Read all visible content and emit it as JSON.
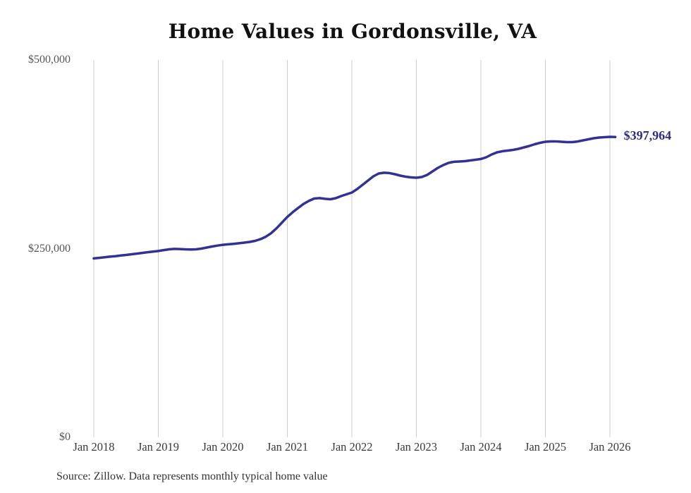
{
  "chart_data": {
    "type": "line",
    "title": "Home Values in Gordonsville, VA",
    "source": "Source: Zillow. Data represents monthly typical home value",
    "end_label": "$397,964",
    "latest_value": 397964,
    "ylim": [
      0,
      500000
    ],
    "y_tick_labels": [
      "$500,000",
      "$250,000",
      "$0"
    ],
    "y_tick_values": [
      500000,
      250000,
      0
    ],
    "x_tick_labels": [
      "Jan 2018",
      "Jan 2019",
      "Jan 2020",
      "Jan 2021",
      "Jan 2022",
      "Jan 2023",
      "Jan 2024",
      "Jan 2025",
      "Jan 2026"
    ],
    "grid": "vertical-only",
    "legend": "none",
    "line_color": "#343194",
    "grid_color": "#cccccc",
    "series": [
      {
        "name": "Monthly typical home value",
        "start": "2018-01",
        "frequency": "monthly",
        "values": [
          237000,
          237800,
          238500,
          239300,
          240000,
          240800,
          241600,
          242500,
          243400,
          244300,
          245200,
          246000,
          246800,
          248000,
          249100,
          249600,
          249400,
          249100,
          248900,
          249100,
          250000,
          251400,
          252800,
          254000,
          255000,
          255700,
          256400,
          257100,
          257900,
          258900,
          260300,
          262500,
          265800,
          270500,
          277000,
          284500,
          292000,
          298200,
          303800,
          309200,
          313200,
          316400,
          316900,
          316000,
          315400,
          316800,
          319600,
          322000,
          324300,
          329000,
          334600,
          340200,
          345800,
          349500,
          350600,
          350100,
          348600,
          346700,
          345300,
          344400,
          343900,
          344900,
          347700,
          352300,
          357000,
          360700,
          363600,
          365000,
          365400,
          365900,
          366800,
          367800,
          368800,
          371000,
          374800,
          377600,
          379100,
          379900,
          380800,
          382200,
          384100,
          386000,
          388300,
          390200,
          391600,
          392100,
          392100,
          391600,
          391100,
          391100,
          392000,
          393500,
          394900,
          396300,
          397200,
          397700,
          398100,
          397964
        ]
      }
    ]
  }
}
